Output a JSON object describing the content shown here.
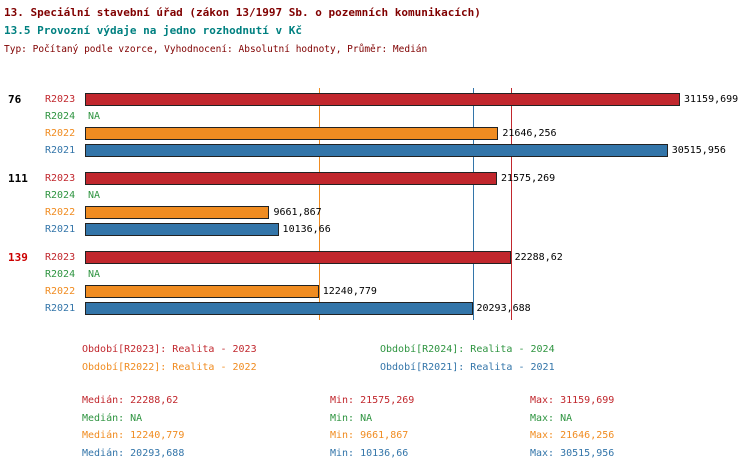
{
  "colors": {
    "title": "#800000",
    "subtitle": "#008080",
    "meta": "#800000",
    "R2023": "#c1272d",
    "R2024": "#2e9440",
    "R2022": "#f08c21",
    "R2021": "#3375a9",
    "value_label": "#000000",
    "group_label_default": "#000000",
    "group_label_highlight": "#cc0000"
  },
  "chart_data": {
    "type": "bar",
    "orientation": "horizontal",
    "title": "13. Speciální stavební úřad (zákon 13/1997 Sb. o pozemních komunikacích)",
    "subtitle": "13.5 Provozní výdaje na jedno rozhodnutí v Kč",
    "meta": "Typ: Počítaný podle vzorce, Vyhodnocení: Absolutní hodnoty, Průměr: Medián",
    "value_unit": "Kč",
    "xlim": [
      0,
      34500
    ],
    "grid": false,
    "series_order": [
      "R2023",
      "R2024",
      "R2022",
      "R2021"
    ],
    "groups": [
      {
        "label": "76",
        "highlight": false,
        "bars": [
          {
            "series": "R2023",
            "value": 31159.699,
            "display": "31159,699"
          },
          {
            "series": "R2024",
            "value": null,
            "display": "NA"
          },
          {
            "series": "R2022",
            "value": 21646.256,
            "display": "21646,256"
          },
          {
            "series": "R2021",
            "value": 30515.956,
            "display": "30515,956"
          }
        ]
      },
      {
        "label": "111",
        "highlight": false,
        "bars": [
          {
            "series": "R2023",
            "value": 21575.269,
            "display": "21575,269"
          },
          {
            "series": "R2024",
            "value": null,
            "display": "NA"
          },
          {
            "series": "R2022",
            "value": 9661.867,
            "display": "9661,867"
          },
          {
            "series": "R2021",
            "value": 10136.66,
            "display": "10136,66"
          }
        ]
      },
      {
        "label": "139",
        "highlight": true,
        "bars": [
          {
            "series": "R2023",
            "value": 22288.62,
            "display": "22288,62"
          },
          {
            "series": "R2024",
            "value": null,
            "display": "NA"
          },
          {
            "series": "R2022",
            "value": 12240.779,
            "display": "12240,779"
          },
          {
            "series": "R2021",
            "value": 20293.688,
            "display": "20293,688"
          }
        ]
      }
    ],
    "median_lines": [
      {
        "series": "R2023",
        "value": 22288.62
      },
      {
        "series": "R2022",
        "value": 12240.779
      },
      {
        "series": "R2021",
        "value": 20293.688
      }
    ],
    "legend": [
      {
        "series": "R2023",
        "label": "Období[R2023]: Realita - 2023",
        "col": 0,
        "row": 0
      },
      {
        "series": "R2024",
        "label": "Období[R2024]: Realita - 2024",
        "col": 1,
        "row": 0
      },
      {
        "series": "R2022",
        "label": "Období[R2022]: Realita - 2022",
        "col": 0,
        "row": 1
      },
      {
        "series": "R2021",
        "label": "Období[R2021]: Realita - 2021",
        "col": 1,
        "row": 1
      }
    ],
    "stats_labels": {
      "median": "Medián",
      "min": "Min",
      "max": "Max"
    },
    "stats": [
      {
        "series": "R2023",
        "median": "22288,62",
        "min": "21575,269",
        "max": "31159,699"
      },
      {
        "series": "R2024",
        "median": "NA",
        "min": "NA",
        "max": "NA"
      },
      {
        "series": "R2022",
        "median": "12240,779",
        "min": "9661,867",
        "max": "21646,256"
      },
      {
        "series": "R2021",
        "median": "20293,688",
        "min": "10136,66",
        "max": "30515,956"
      }
    ]
  }
}
